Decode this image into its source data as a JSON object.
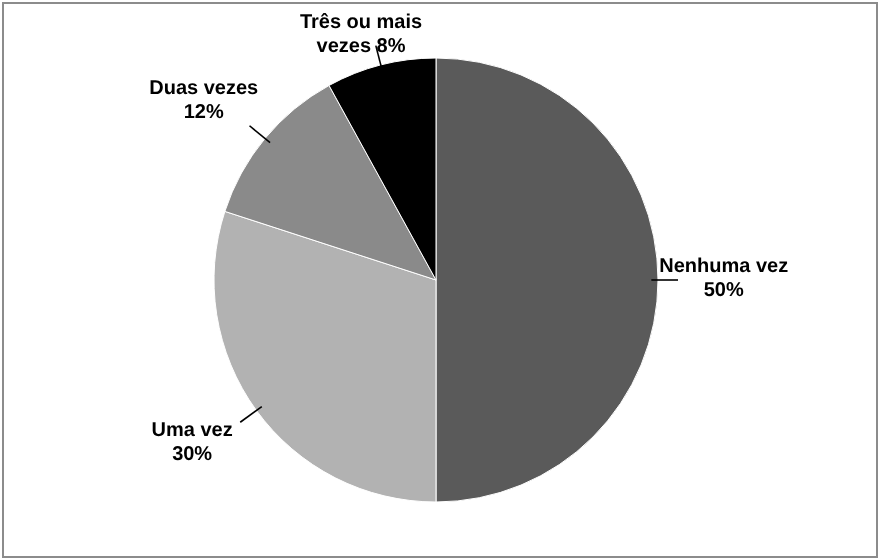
{
  "chart_data": {
    "type": "pie",
    "categories": [
      "Nenhuma vez",
      "Uma vez",
      "Duas vezes",
      "Três ou mais vezes"
    ],
    "values": [
      50,
      30,
      12,
      8
    ],
    "colors": [
      "#5a5a5a",
      "#b2b2b2",
      "#8a8a8a",
      "#000000"
    ],
    "value_labels": [
      "50%",
      "30%",
      "12%",
      "8%"
    ]
  }
}
